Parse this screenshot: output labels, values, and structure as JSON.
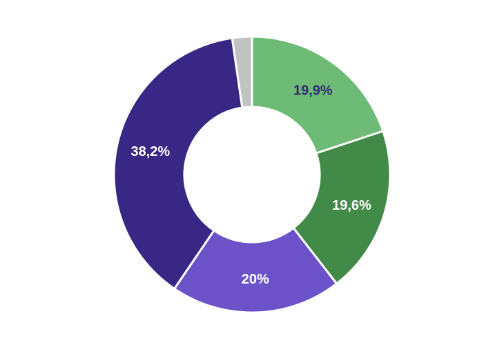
{
  "chart_data": {
    "type": "pie",
    "title": "",
    "donut": true,
    "slices": [
      {
        "label": "19,9%",
        "value": 19.9,
        "color": "#6dbb74",
        "label_color": "#2e2a78"
      },
      {
        "label": "19,6%",
        "value": 19.6,
        "color": "#428a47",
        "label_color": "#ffffff"
      },
      {
        "label": "20%",
        "value": 20.0,
        "color": "#6b52c8",
        "label_color": "#ffffff"
      },
      {
        "label": "38,2%",
        "value": 38.2,
        "color": "#382784",
        "label_color": "#ffffff"
      },
      {
        "label": "",
        "value": 2.3,
        "color": "#c2c2c2",
        "label_color": "#ffffff"
      }
    ]
  }
}
